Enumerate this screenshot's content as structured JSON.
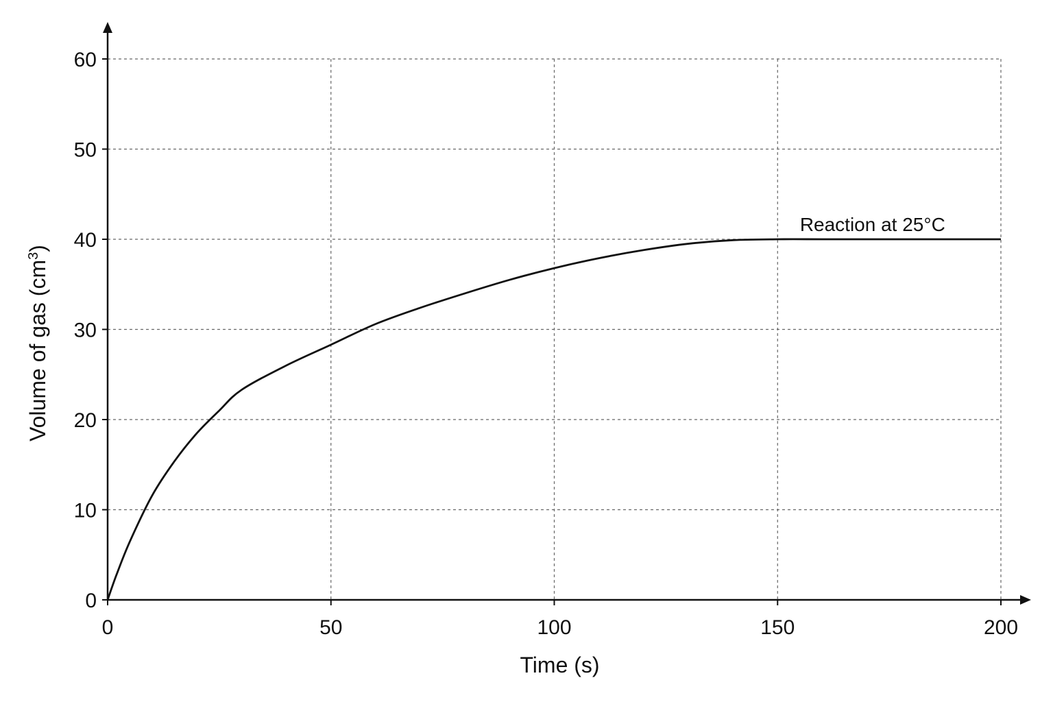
{
  "chart_data": {
    "type": "line",
    "title": "",
    "xlabel": "Time (s)",
    "ylabel_main": "Volume of gas (cm",
    "ylabel_sup": "3",
    "ylabel_end": ")",
    "xlim": [
      0,
      200
    ],
    "ylim": [
      0,
      60
    ],
    "x_ticks": [
      0,
      50,
      100,
      150,
      200
    ],
    "y_ticks": [
      0,
      10,
      20,
      30,
      40,
      50,
      60
    ],
    "grid": true,
    "series": [
      {
        "name": "Reaction at 25°C",
        "x": [
          0,
          2,
          5,
          10,
          15,
          20,
          25,
          30,
          40,
          50,
          60,
          70,
          80,
          90,
          100,
          110,
          120,
          130,
          140,
          150,
          160,
          170,
          180,
          190,
          200
        ],
        "y": [
          0,
          2.8,
          6.5,
          11.6,
          15.4,
          18.5,
          21.0,
          23.3,
          26.0,
          28.3,
          30.6,
          32.4,
          34.0,
          35.5,
          36.8,
          37.9,
          38.8,
          39.5,
          39.9,
          40.0,
          40.0,
          40.0,
          40.0,
          40.0,
          40.0
        ]
      }
    ]
  }
}
